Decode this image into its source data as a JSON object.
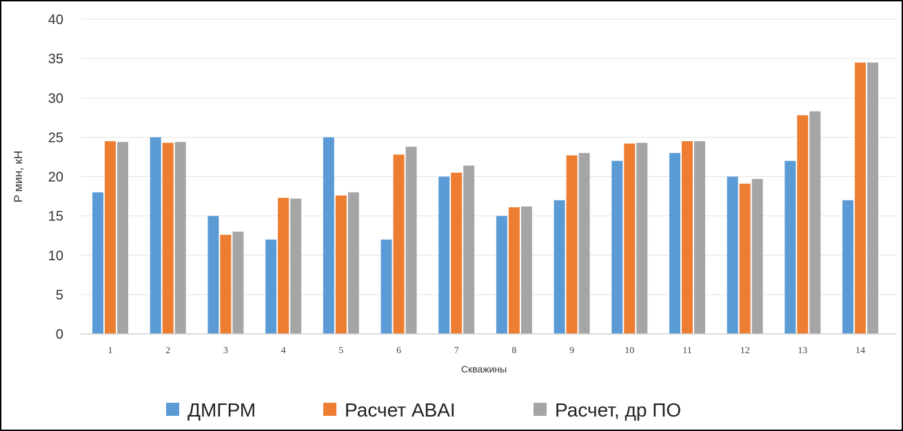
{
  "chart_data": {
    "type": "bar",
    "title": "",
    "xlabel": "Скважины",
    "ylabel": "P мин, кН",
    "ylim": [
      0,
      40
    ],
    "yticks": [
      0,
      5,
      10,
      15,
      20,
      25,
      30,
      35,
      40
    ],
    "grid": true,
    "legend_position": "bottom",
    "categories": [
      "1",
      "2",
      "3",
      "4",
      "5",
      "6",
      "7",
      "8",
      "9",
      "10",
      "11",
      "12",
      "13",
      "14"
    ],
    "series": [
      {
        "name": "ДМГРМ",
        "color": "#5b9bd5",
        "values": [
          18,
          25,
          15,
          12,
          25,
          12,
          20,
          15,
          17,
          22,
          23,
          20,
          22,
          17
        ]
      },
      {
        "name": "Расчет ABAI",
        "color": "#ed7d31",
        "values": [
          24.5,
          24.3,
          12.6,
          17.3,
          17.6,
          22.8,
          20.5,
          16.1,
          22.7,
          24.2,
          24.5,
          19.1,
          27.8,
          34.5
        ]
      },
      {
        "name": "Расчет, др ПО",
        "color": "#a5a5a5",
        "values": [
          24.4,
          24.4,
          13.0,
          17.2,
          18.0,
          23.8,
          21.4,
          16.2,
          23.0,
          24.3,
          24.5,
          19.7,
          28.3,
          34.5
        ]
      }
    ]
  }
}
